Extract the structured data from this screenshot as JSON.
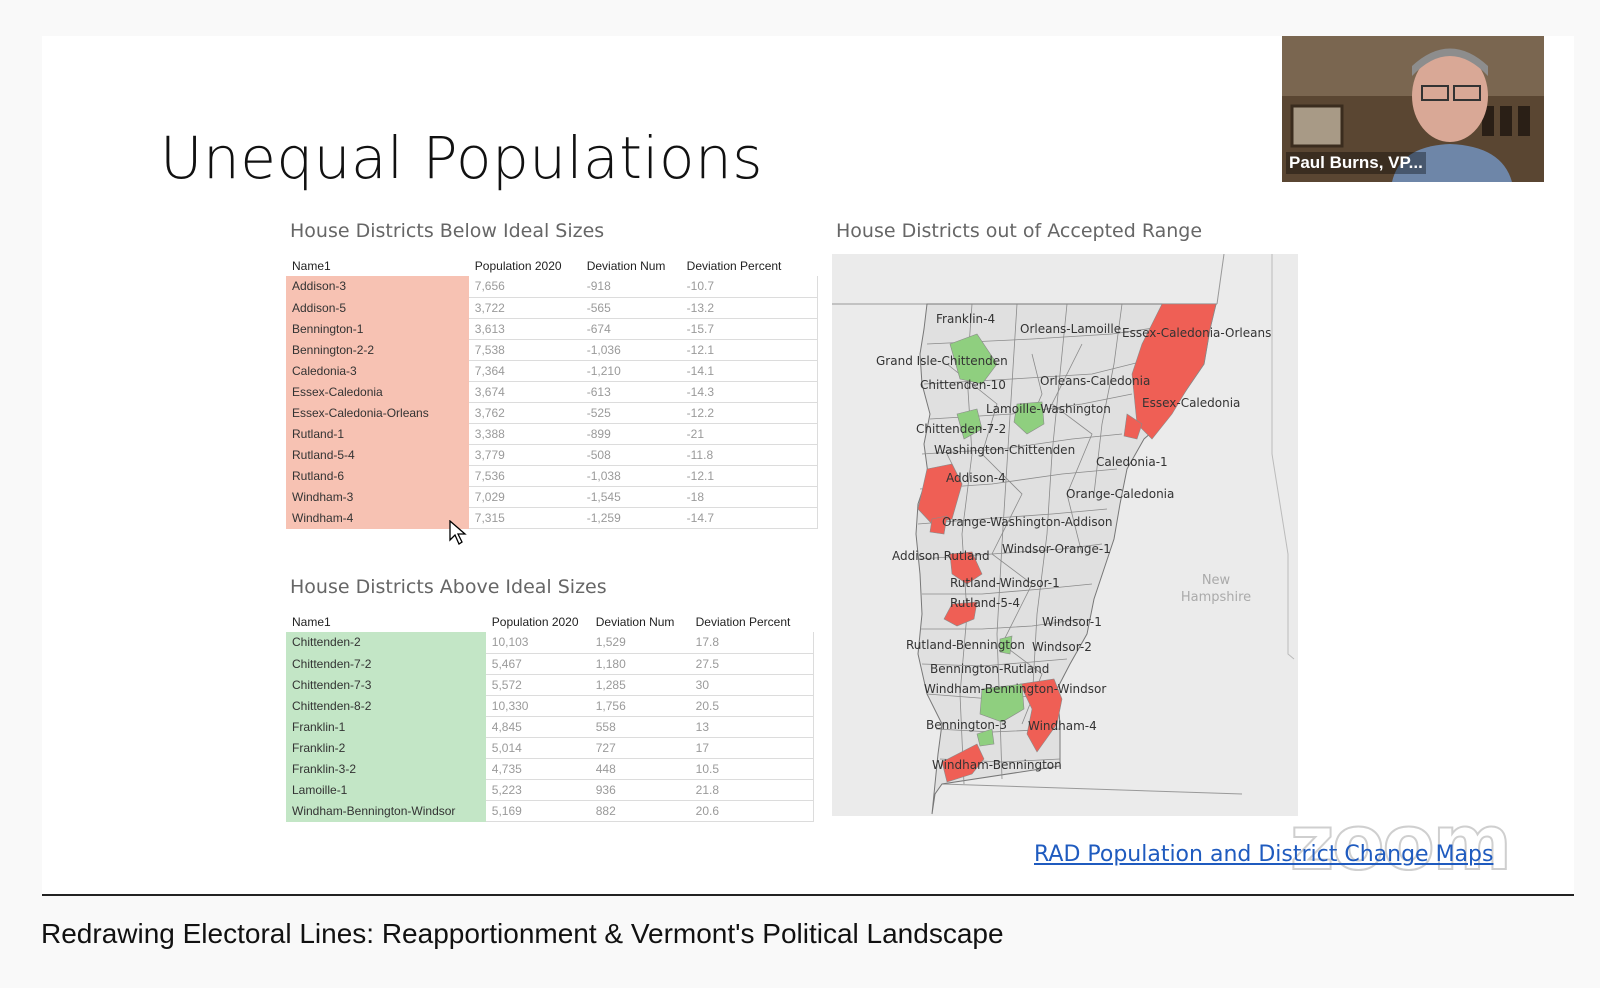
{
  "slide": {
    "title": "Unequal Populations",
    "below_title": "House Districts Below Ideal Sizes",
    "above_title": "House Districts Above Ideal Sizes",
    "map_title": "House Districts out of Accepted Range",
    "link_text": "RAD Population and District Change Maps"
  },
  "below_table": {
    "headers": [
      "Name1",
      "Population 2020",
      "Deviation Num",
      "Deviation Percent"
    ],
    "rows": [
      [
        "Addison-3",
        "7,656",
        "-918",
        "-10.7"
      ],
      [
        "Addison-5",
        "3,722",
        "-565",
        "-13.2"
      ],
      [
        "Bennington-1",
        "3,613",
        "-674",
        "-15.7"
      ],
      [
        "Bennington-2-2",
        "7,538",
        "-1,036",
        "-12.1"
      ],
      [
        "Caledonia-3",
        "7,364",
        "-1,210",
        "-14.1"
      ],
      [
        "Essex-Caledonia",
        "3,674",
        "-613",
        "-14.3"
      ],
      [
        "Essex-Caledonia-Orleans",
        "3,762",
        "-525",
        "-12.2"
      ],
      [
        "Rutland-1",
        "3,388",
        "-899",
        "-21"
      ],
      [
        "Rutland-5-4",
        "3,779",
        "-508",
        "-11.8"
      ],
      [
        "Rutland-6",
        "7,536",
        "-1,038",
        "-12.1"
      ],
      [
        "Windham-3",
        "7,029",
        "-1,545",
        "-18"
      ],
      [
        "Windham-4",
        "7,315",
        "-1,259",
        "-14.7"
      ]
    ]
  },
  "above_table": {
    "headers": [
      "Name1",
      "Population 2020",
      "Deviation Num",
      "Deviation Percent"
    ],
    "rows": [
      [
        "Chittenden-2",
        "10,103",
        "1,529",
        "17.8"
      ],
      [
        "Chittenden-7-2",
        "5,467",
        "1,180",
        "27.5"
      ],
      [
        "Chittenden-7-3",
        "5,572",
        "1,285",
        "30"
      ],
      [
        "Chittenden-8-2",
        "10,330",
        "1,756",
        "20.5"
      ],
      [
        "Franklin-1",
        "4,845",
        "558",
        "13"
      ],
      [
        "Franklin-2",
        "5,014",
        "727",
        "17"
      ],
      [
        "Franklin-3-2",
        "4,735",
        "448",
        "10.5"
      ],
      [
        "Lamoille-1",
        "5,223",
        "936",
        "21.8"
      ],
      [
        "Windham-Bennington-Windsor",
        "5,169",
        "882",
        "20.6"
      ]
    ]
  },
  "map": {
    "labels": [
      "Franklin-4",
      "Orleans-Lamoille",
      "Essex-Caledonia-Orleans",
      "Grand Isle-Chittenden",
      "Chittenden-10",
      "Orleans-Caledonia",
      "Lamoille-Washington",
      "Essex-Caledonia",
      "Chittenden-7-2",
      "Washington-Chittenden",
      "Caledonia-1",
      "Addison-4",
      "Orange-Caledonia",
      "Orange-Washington-Addison",
      "Addison Rutland",
      "Windsor-Orange-1",
      "Rutland-Windsor-1",
      "Rutland-5-4",
      "Windsor-1",
      "Rutland-Bennington",
      "Windsor-2",
      "Bennington-Rutland",
      "Windham-Bennington-Windsor",
      "Bennington-3",
      "Windham-4",
      "Windham-Bennington"
    ],
    "neighbor": "New Hampshire",
    "colors": {
      "below": "#ef5f55",
      "above": "#8fcf7f",
      "base": "#e0e0e0"
    }
  },
  "video": {
    "participant_name": "Paul Burns, VP..."
  },
  "zoom_logo": "zoom",
  "page": {
    "video_title": "Redrawing Electoral Lines: Reapportionment & Vermont's Political Landscape"
  }
}
